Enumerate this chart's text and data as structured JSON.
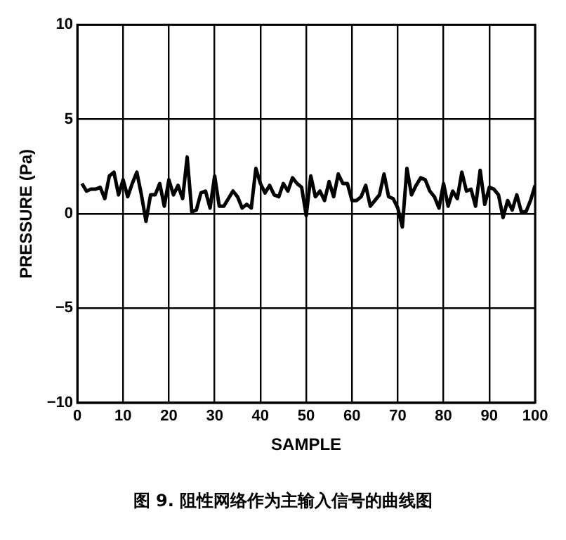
{
  "chart_data": {
    "type": "line",
    "xlabel": "SAMPLE",
    "ylabel": "PRESSURE (Pa)",
    "annotations": [
      "图 9. 阻性网络作为主输入信号的曲线图"
    ],
    "x": [
      1,
      2,
      3,
      4,
      5,
      6,
      7,
      8,
      9,
      10,
      11,
      12,
      13,
      14,
      15,
      16,
      17,
      18,
      19,
      20,
      21,
      22,
      23,
      24,
      25,
      26,
      27,
      28,
      29,
      30,
      31,
      32,
      33,
      34,
      35,
      36,
      37,
      38,
      39,
      40,
      41,
      42,
      43,
      44,
      45,
      46,
      47,
      48,
      49,
      50,
      51,
      52,
      53,
      54,
      55,
      56,
      57,
      58,
      59,
      60,
      61,
      62,
      63,
      64,
      65,
      66,
      67,
      68,
      69,
      70,
      71,
      72,
      73,
      74,
      75,
      76,
      77,
      78,
      79,
      80,
      81,
      82,
      83,
      84,
      85,
      86,
      87,
      88,
      89,
      90,
      91,
      92,
      93,
      94,
      95,
      96,
      97,
      98,
      99,
      100
    ],
    "series": [
      {
        "color": "#000000",
        "values": [
          1.6,
          1.2,
          1.3,
          1.3,
          1.4,
          0.8,
          2.0,
          2.2,
          1.0,
          1.8,
          0.9,
          1.6,
          2.2,
          1.0,
          -0.4,
          1.0,
          1.0,
          1.6,
          0.4,
          1.8,
          1.0,
          1.5,
          0.8,
          3.0,
          0.1,
          0.2,
          1.1,
          1.2,
          0.3,
          2.0,
          0.4,
          0.4,
          0.8,
          1.2,
          0.9,
          0.3,
          0.5,
          0.3,
          2.4,
          1.6,
          1.1,
          1.5,
          1.0,
          0.9,
          1.6,
          1.2,
          1.9,
          1.6,
          1.4,
          -0.1,
          2.0,
          0.9,
          1.2,
          0.7,
          1.7,
          0.9,
          2.1,
          1.6,
          1.6,
          0.7,
          0.7,
          0.9,
          1.5,
          0.4,
          0.7,
          1.0,
          2.1,
          0.9,
          0.8,
          0.3,
          -0.7,
          2.4,
          1.0,
          1.5,
          1.9,
          1.8,
          1.2,
          0.9,
          0.3,
          1.6,
          0.4,
          1.2,
          0.8,
          2.2,
          1.2,
          1.3,
          0.4,
          2.3,
          0.5,
          1.4,
          1.3,
          1.0,
          -0.2,
          0.7,
          0.2,
          1.0,
          0.1,
          0.1,
          0.7,
          1.5
        ]
      }
    ],
    "xlim": [
      0,
      100
    ],
    "xticks": [
      0,
      10,
      20,
      30,
      40,
      50,
      60,
      70,
      80,
      90,
      100
    ],
    "ylim": [
      -10,
      10
    ],
    "yticks": [
      {
        "value": -10,
        "label": "−10"
      },
      {
        "value": -5,
        "label": "−5"
      },
      0,
      5,
      10
    ],
    "grid": true,
    "legend": false,
    "marker": "none",
    "line_style": "solid"
  }
}
